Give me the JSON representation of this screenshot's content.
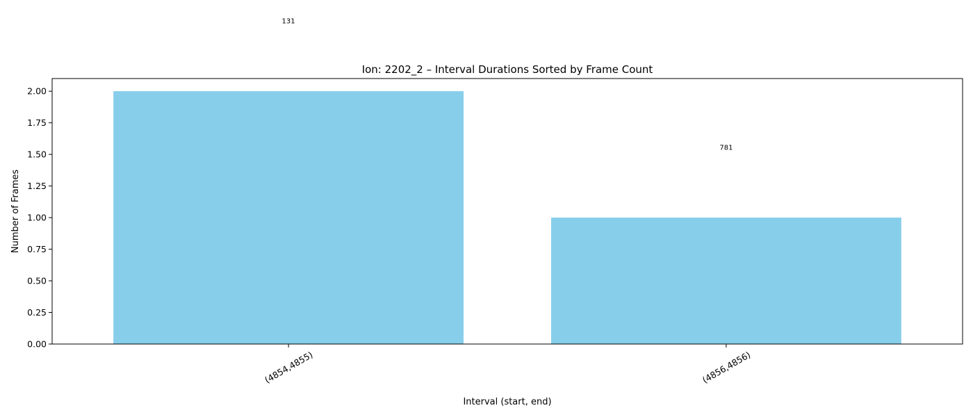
{
  "chart_data": {
    "type": "bar",
    "title": "Ion: 2202_2 – Interval Durations Sorted by Frame Count",
    "xlabel": "Interval (start, end)",
    "ylabel": "Number of Frames",
    "categories": [
      "(4854,4855)",
      "(4856,4856)"
    ],
    "values": [
      2,
      1
    ],
    "data_labels": [
      "131",
      "781"
    ],
    "ylim": [
      0,
      2.1
    ],
    "yticks": [
      "0.00",
      "0.25",
      "0.50",
      "0.75",
      "1.00",
      "1.25",
      "1.50",
      "1.75",
      "2.00"
    ],
    "bar_color": "#87ceeb",
    "grid": false
  }
}
